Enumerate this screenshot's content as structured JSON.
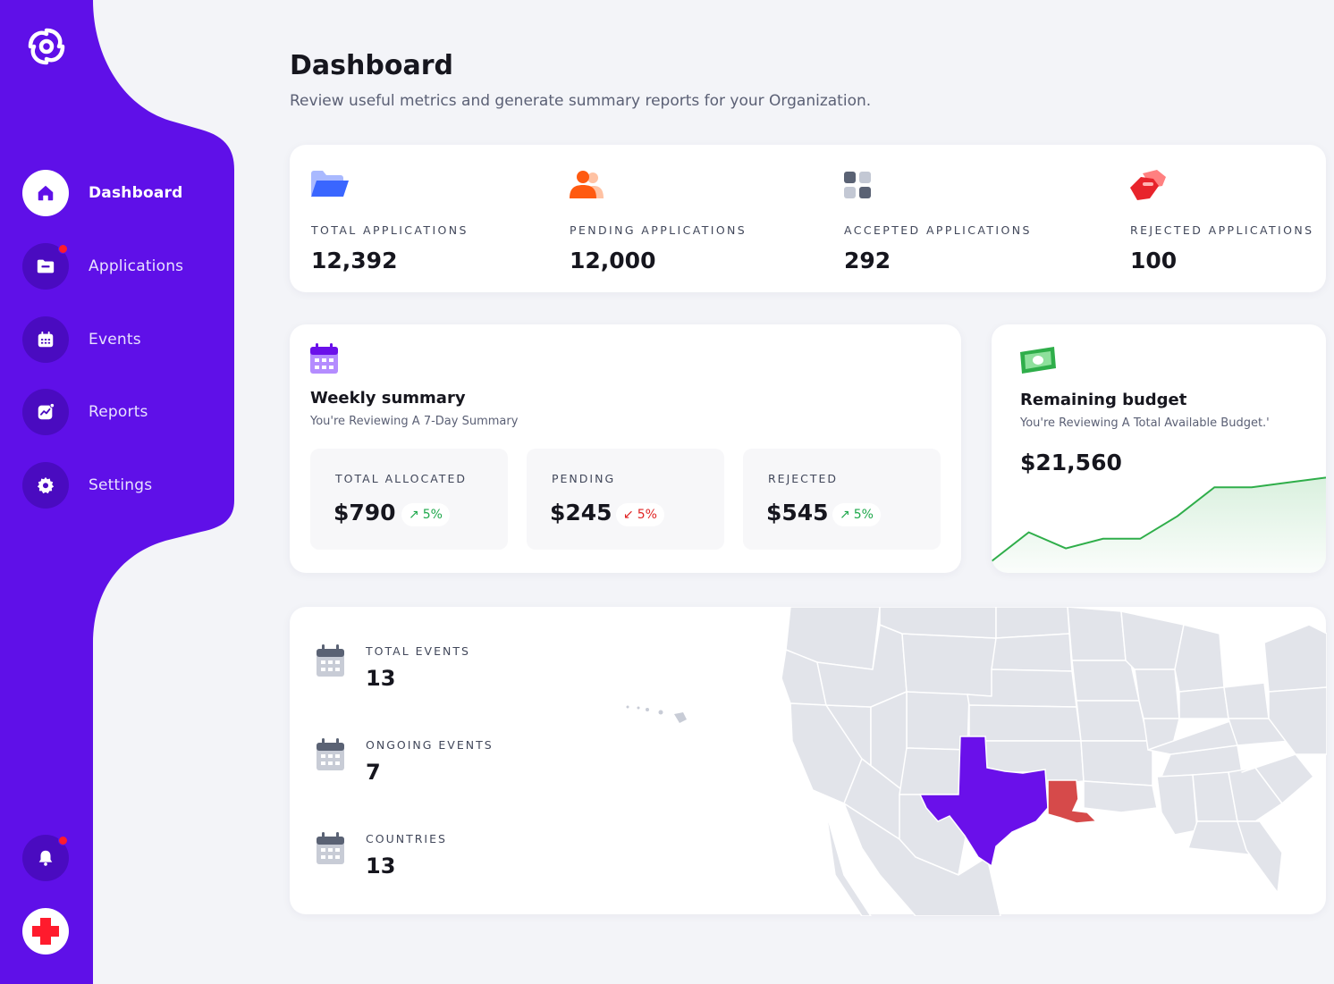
{
  "colors": {
    "brand": "#5f10e8",
    "accent_red": "#ff1b2d",
    "positive": "#1ea84b",
    "negative": "#e02424",
    "map_highlight_purple": "#6a10ea",
    "map_highlight_red": "#d64a4a"
  },
  "sidebar": {
    "logo_icon": "spiral-logo-icon",
    "items": [
      {
        "label": "Dashboard",
        "icon": "home-icon",
        "active": true
      },
      {
        "label": "Applications",
        "icon": "folder-icon",
        "badge": true
      },
      {
        "label": "Events",
        "icon": "calendar-icon"
      },
      {
        "label": "Reports",
        "icon": "chart-icon"
      },
      {
        "label": "Settings",
        "icon": "gear-icon"
      }
    ],
    "bottom": [
      {
        "icon": "bell-icon",
        "badge": true
      },
      {
        "icon": "red-cross-icon"
      }
    ]
  },
  "header": {
    "title": "Dashboard",
    "subtitle": "Review useful metrics and generate summary reports for your Organization."
  },
  "stats": [
    {
      "label": "TOTAL  APPLICATIONS",
      "value": "12,392",
      "icon": "folder-icon"
    },
    {
      "label": "PENDING  APPLICATIONS",
      "value": "12,000",
      "icon": "users-icon"
    },
    {
      "label": "ACCEPTED  APPLICATIONS",
      "value": "292",
      "icon": "grid-icon"
    },
    {
      "label": "REJECTED  APPLICATIONS",
      "value": "100",
      "icon": "hand-icon"
    }
  ],
  "weekly": {
    "title": "Weekly summary",
    "subtitle": "You're Reviewing A 7-Day Summary",
    "items": [
      {
        "label": "TOTAL ALLOCATED",
        "value": "$790",
        "change": "5%",
        "direction": "up"
      },
      {
        "label": "PENDING",
        "value": "$245",
        "change": "5%",
        "direction": "down"
      },
      {
        "label": "REJECTED",
        "value": "$545",
        "change": "5%",
        "direction": "up"
      }
    ]
  },
  "budget": {
    "title": "Remaining budget",
    "subtitle": "You're Reviewing A Total Available Budget.'",
    "value": "$21,560",
    "trend": [
      0,
      36,
      16,
      28,
      28,
      56,
      92,
      92,
      98,
      104
    ]
  },
  "events": {
    "items": [
      {
        "label": "TOTAL EVENTS",
        "value": "13"
      },
      {
        "label": "ONGOING EVENTS",
        "value": "7"
      },
      {
        "label": "COUNTRIES",
        "value": "13"
      }
    ]
  }
}
